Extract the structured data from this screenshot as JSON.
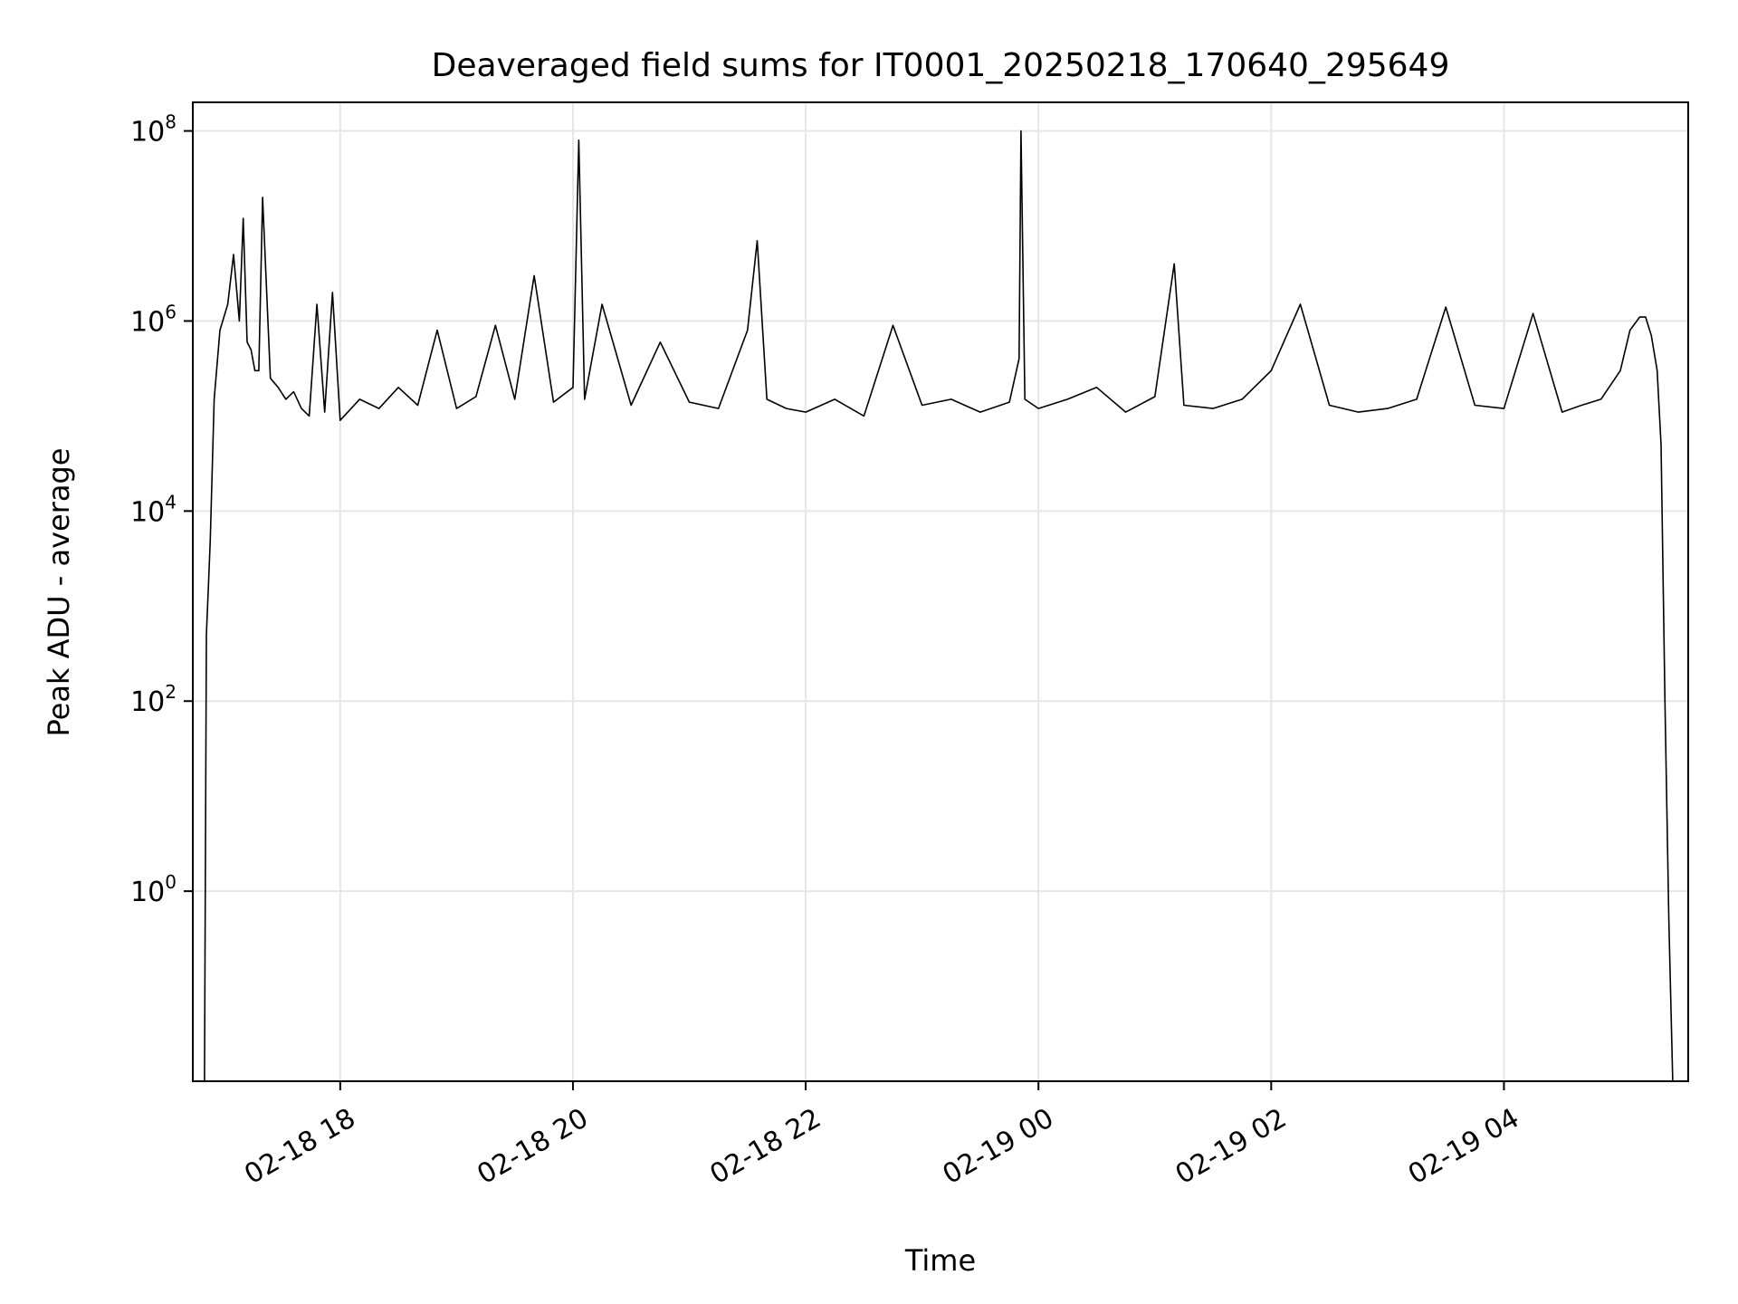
{
  "chart_data": {
    "type": "line",
    "title": "Deaveraged field sums for IT0001_20250218_170640_295649",
    "xlabel": "Time",
    "ylabel": "Peak ADU - average",
    "y_scale": "log",
    "ylim": [
      0.01,
      200000000
    ],
    "xlim": [
      "2025-02-18 16:44",
      "2025-02-19 05:35"
    ],
    "grid": true,
    "legend": "none",
    "line_color": "#000000",
    "grid_color": "#e6e6e6",
    "x_ticks": [
      {
        "value": "2025-02-18 18:00",
        "label": "02-18 18"
      },
      {
        "value": "2025-02-18 20:00",
        "label": "02-18 20"
      },
      {
        "value": "2025-02-18 22:00",
        "label": "02-18 22"
      },
      {
        "value": "2025-02-19 00:00",
        "label": "02-19 00"
      },
      {
        "value": "2025-02-19 02:00",
        "label": "02-19 02"
      },
      {
        "value": "2025-02-19 04:00",
        "label": "02-19 04"
      }
    ],
    "y_ticks": [
      {
        "value": 1,
        "base": "10",
        "exp": "0"
      },
      {
        "value": 100,
        "base": "10",
        "exp": "2"
      },
      {
        "value": 10000,
        "base": "10",
        "exp": "4"
      },
      {
        "value": 1000000,
        "base": "10",
        "exp": "6"
      },
      {
        "value": 100000000,
        "base": "10",
        "exp": "8"
      }
    ],
    "series": [
      {
        "x": [
          "2025-02-18 16:50",
          "2025-02-18 16:51",
          "2025-02-18 16:52",
          "2025-02-18 16:53",
          "2025-02-18 16:55",
          "2025-02-18 16:58",
          "2025-02-18 17:02",
          "2025-02-18 17:05",
          "2025-02-18 17:08",
          "2025-02-18 17:10",
          "2025-02-18 17:12",
          "2025-02-18 17:14",
          "2025-02-18 17:16",
          "2025-02-18 17:18",
          "2025-02-18 17:20",
          "2025-02-18 17:24",
          "2025-02-18 17:28",
          "2025-02-18 17:32",
          "2025-02-18 17:36",
          "2025-02-18 17:40",
          "2025-02-18 17:44",
          "2025-02-18 17:48",
          "2025-02-18 17:52",
          "2025-02-18 17:56",
          "2025-02-18 18:00",
          "2025-02-18 18:10",
          "2025-02-18 18:20",
          "2025-02-18 18:30",
          "2025-02-18 18:40",
          "2025-02-18 18:50",
          "2025-02-18 19:00",
          "2025-02-18 19:10",
          "2025-02-18 19:20",
          "2025-02-18 19:30",
          "2025-02-18 19:40",
          "2025-02-18 19:50",
          "2025-02-18 20:00",
          "2025-02-18 20:03",
          "2025-02-18 20:06",
          "2025-02-18 20:15",
          "2025-02-18 20:30",
          "2025-02-18 20:45",
          "2025-02-18 21:00",
          "2025-02-18 21:15",
          "2025-02-18 21:30",
          "2025-02-18 21:35",
          "2025-02-18 21:40",
          "2025-02-18 21:50",
          "2025-02-18 22:00",
          "2025-02-18 22:15",
          "2025-02-18 22:30",
          "2025-02-18 22:45",
          "2025-02-18 23:00",
          "2025-02-18 23:15",
          "2025-02-18 23:30",
          "2025-02-18 23:45",
          "2025-02-18 23:50",
          "2025-02-18 23:51",
          "2025-02-18 23:53",
          "2025-02-19 00:00",
          "2025-02-19 00:15",
          "2025-02-19 00:30",
          "2025-02-19 00:45",
          "2025-02-19 01:00",
          "2025-02-19 01:10",
          "2025-02-19 01:15",
          "2025-02-19 01:30",
          "2025-02-19 01:45",
          "2025-02-19 02:00",
          "2025-02-19 02:15",
          "2025-02-19 02:30",
          "2025-02-19 02:45",
          "2025-02-19 03:00",
          "2025-02-19 03:15",
          "2025-02-19 03:30",
          "2025-02-19 03:45",
          "2025-02-19 04:00",
          "2025-02-19 04:15",
          "2025-02-19 04:30",
          "2025-02-19 04:40",
          "2025-02-19 04:50",
          "2025-02-19 05:00",
          "2025-02-19 05:05",
          "2025-02-19 05:10",
          "2025-02-19 05:13",
          "2025-02-19 05:16",
          "2025-02-19 05:19",
          "2025-02-19 05:21",
          "2025-02-19 05:23",
          "2025-02-19 05:25",
          "2025-02-19 05:27"
        ],
        "y": [
          0.01,
          500,
          1500,
          5000,
          150000,
          800000,
          1500000,
          5000000,
          1000000,
          12000000,
          600000,
          500000,
          300000,
          300000,
          20000000,
          250000,
          200000,
          150000,
          180000,
          120000,
          100000,
          1500000,
          110000,
          2000000,
          90000,
          150000,
          120000,
          200000,
          130000,
          800000,
          120000,
          160000,
          900000,
          150000,
          3000000,
          140000,
          200000,
          80000000,
          150000,
          1500000,
          130000,
          600000,
          140000,
          120000,
          800000,
          7000000,
          150000,
          120000,
          110000,
          150000,
          100000,
          900000,
          130000,
          150000,
          110000,
          140000,
          400000,
          100000000,
          150000,
          120000,
          150000,
          200000,
          110000,
          160000,
          4000000,
          130000,
          120000,
          150000,
          300000,
          1500000,
          130000,
          110000,
          120000,
          150000,
          1400000,
          130000,
          120000,
          1200000,
          110000,
          130000,
          150000,
          300000,
          800000,
          1100000,
          1100000,
          700000,
          300000,
          50000,
          100,
          0.5,
          0.01
        ]
      }
    ]
  }
}
